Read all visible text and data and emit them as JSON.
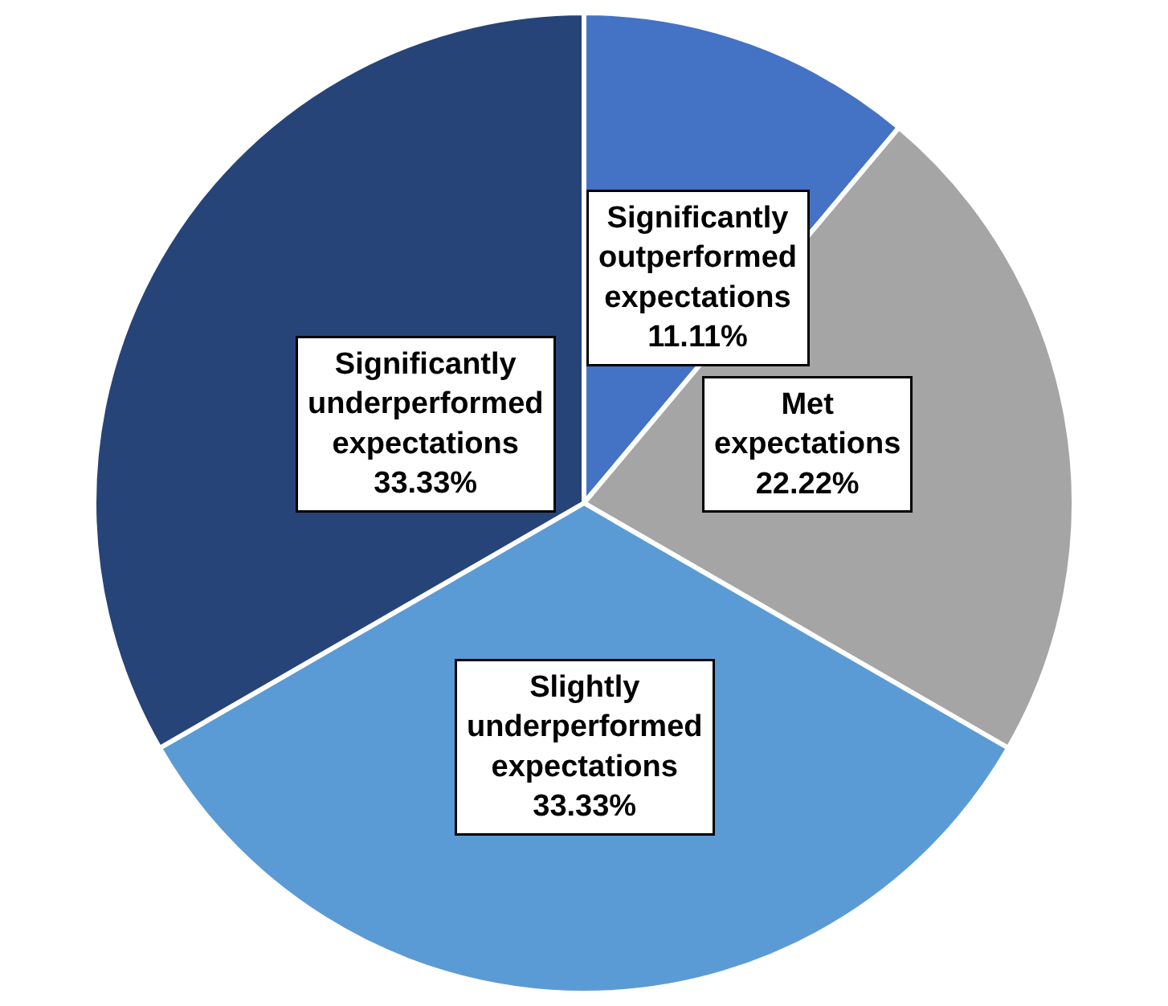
{
  "chart_data": {
    "type": "pie",
    "categories": [
      "Significantly outperformed expectations",
      "Met expectations",
      "Slightly underperformed expectations",
      "Significantly underperformed expectations"
    ],
    "values": [
      11.11,
      22.22,
      33.33,
      33.33
    ],
    "colors": [
      "#4472c4",
      "#a5a5a5",
      "#5b9bd5",
      "#264478"
    ],
    "value_labels": [
      "11.11%",
      "22.22%",
      "33.33%",
      "33.33%"
    ],
    "legend": false
  }
}
